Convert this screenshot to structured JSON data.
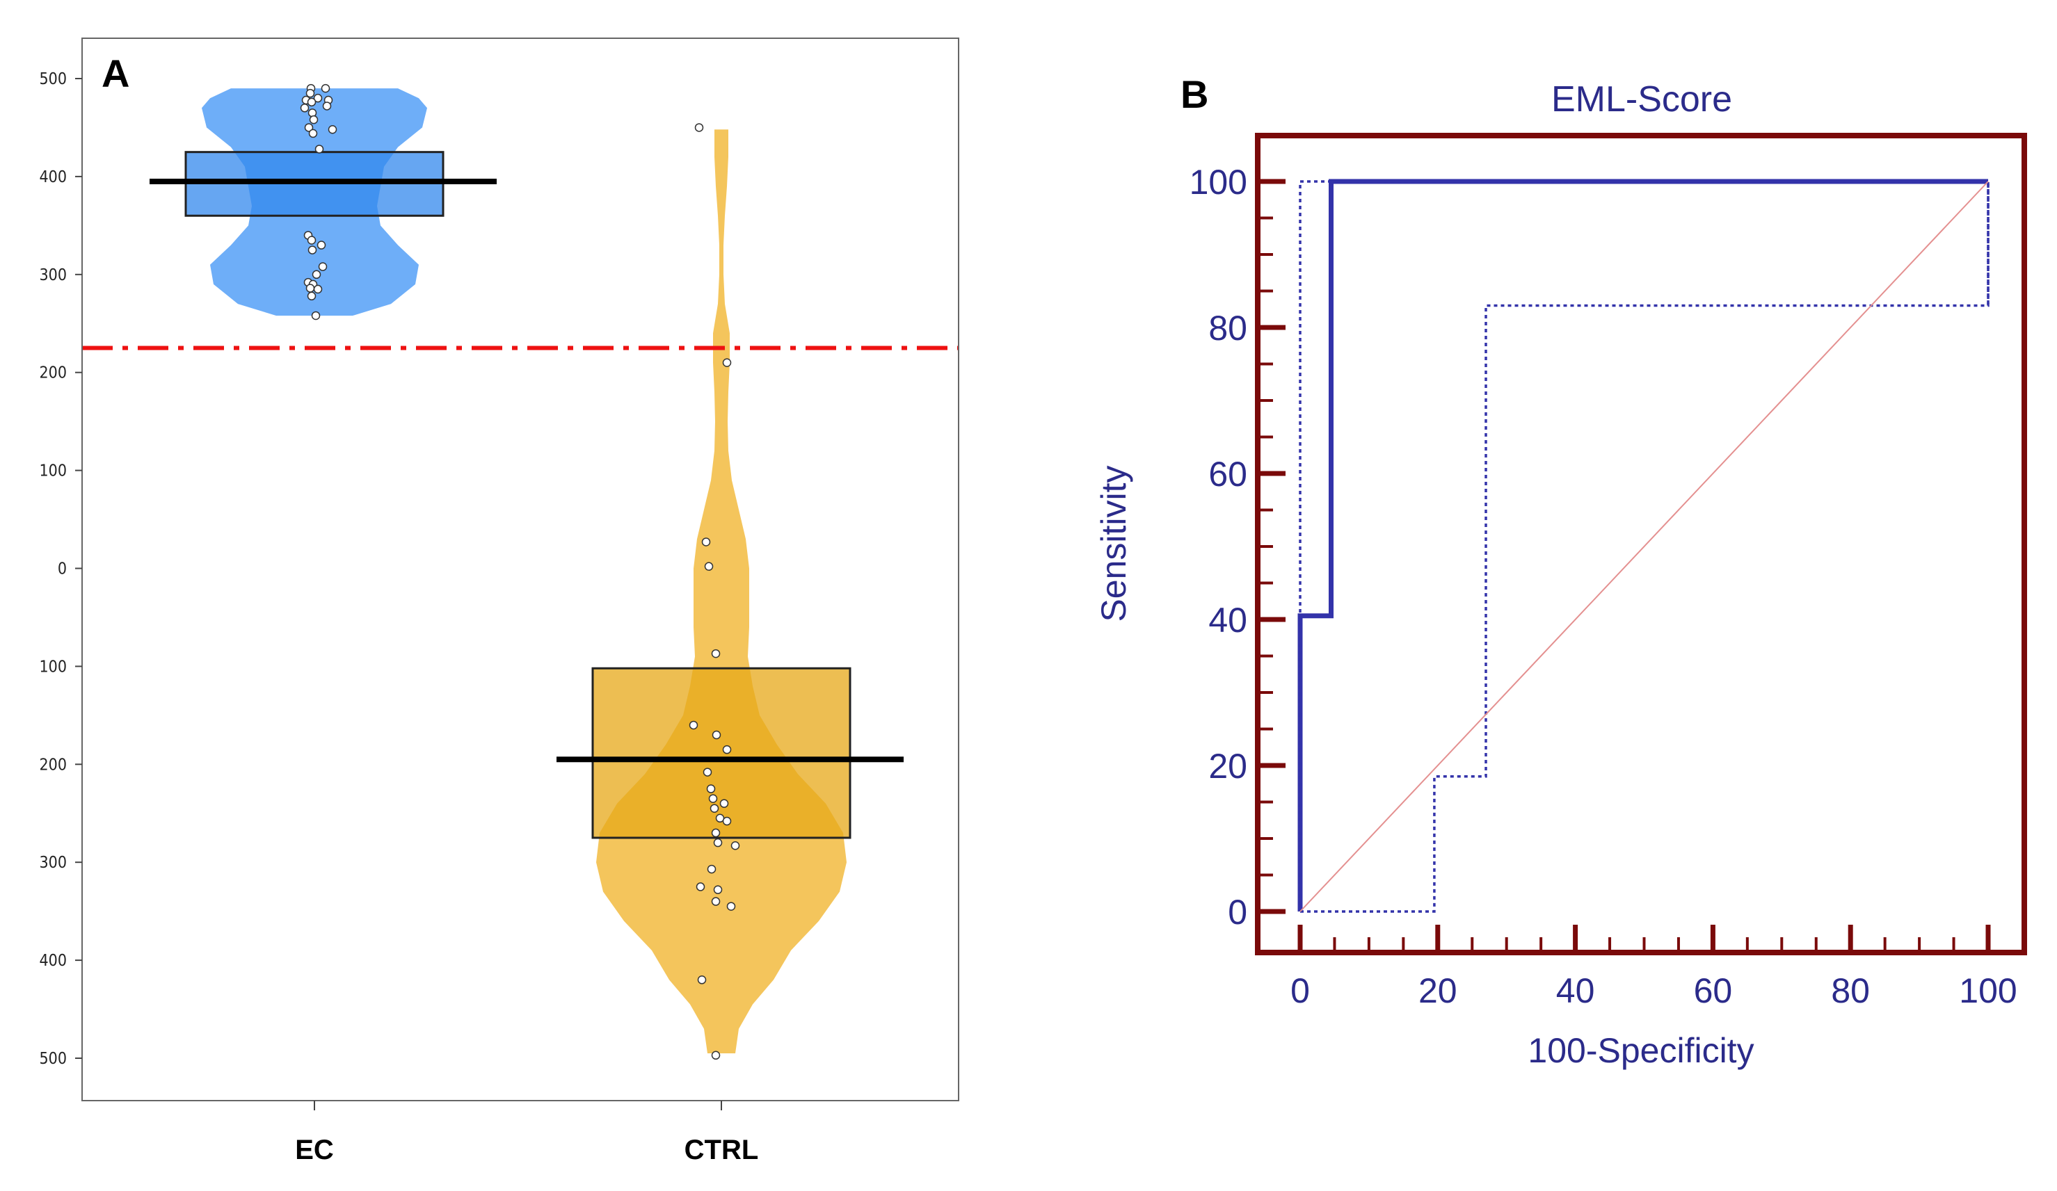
{
  "chart_data": [
    {
      "panel_label": "A",
      "type": "violin-box",
      "ylim": [
        -500,
        500
      ],
      "yticks": [
        500,
        400,
        300,
        200,
        100,
        0,
        -100,
        -200,
        -300,
        -400,
        -500
      ],
      "ytick_labels": [
        "500",
        "400",
        "300",
        "200",
        "100",
        "0",
        "100",
        "200",
        "300",
        "400",
        "500"
      ],
      "categories": [
        "EC",
        "CTRL"
      ],
      "threshold": 225,
      "colors": {
        "EC_fill": "#5aa3f7",
        "EC_box": "#3388ee",
        "CTRL_fill": "#f2bd45",
        "CTRL_box": "#e7a818",
        "threshold_line": "#ee1111"
      },
      "series": [
        {
          "name": "EC",
          "median": 395,
          "q1": 360,
          "q3": 425,
          "violin": [
            [
              258,
              55
            ],
            [
              270,
              110
            ],
            [
              290,
              145
            ],
            [
              310,
              150
            ],
            [
              330,
              120
            ],
            [
              350,
              95
            ],
            [
              370,
              90
            ],
            [
              390,
              95
            ],
            [
              410,
              100
            ],
            [
              430,
              120
            ],
            [
              450,
              155
            ],
            [
              470,
              162
            ],
            [
              480,
              150
            ],
            [
              490,
              120
            ]
          ],
          "points": [
            [
              -5,
              490
            ],
            [
              -6,
              485
            ],
            [
              16,
              490
            ],
            [
              5,
              480
            ],
            [
              -12,
              478
            ],
            [
              -4,
              476
            ],
            [
              20,
              478
            ],
            [
              18,
              472
            ],
            [
              -14,
              470
            ],
            [
              -3,
              465
            ],
            [
              -1,
              458
            ],
            [
              26,
              448
            ],
            [
              -8,
              450
            ],
            [
              -2,
              444
            ],
            [
              7,
              428
            ],
            [
              -9,
              340
            ],
            [
              -4,
              335
            ],
            [
              10,
              330
            ],
            [
              -3,
              325
            ],
            [
              12,
              308
            ],
            [
              3,
              300
            ],
            [
              -9,
              292
            ],
            [
              -2,
              290
            ],
            [
              -6,
              286
            ],
            [
              5,
              285
            ],
            [
              -4,
              278
            ],
            [
              2,
              258
            ]
          ]
        },
        {
          "name": "CTRL",
          "median": -195,
          "q1": -275,
          "q3": -102,
          "violin": [
            [
              -495,
              20
            ],
            [
              -470,
              25
            ],
            [
              -445,
              45
            ],
            [
              -420,
              75
            ],
            [
              -390,
              100
            ],
            [
              -360,
              140
            ],
            [
              -330,
              170
            ],
            [
              -300,
              180
            ],
            [
              -270,
              175
            ],
            [
              -240,
              150
            ],
            [
              -210,
              110
            ],
            [
              -180,
              80
            ],
            [
              -150,
              55
            ],
            [
              -120,
              45
            ],
            [
              -90,
              38
            ],
            [
              -60,
              40
            ],
            [
              -30,
              40
            ],
            [
              0,
              40
            ],
            [
              30,
              35
            ],
            [
              60,
              25
            ],
            [
              90,
              15
            ],
            [
              120,
              10
            ],
            [
              150,
              9
            ],
            [
              180,
              10
            ],
            [
              210,
              12
            ],
            [
              240,
              12
            ],
            [
              270,
              5
            ],
            [
              300,
              3
            ],
            [
              330,
              3
            ],
            [
              360,
              5
            ],
            [
              390,
              8
            ],
            [
              420,
              10
            ],
            [
              448,
              10
            ]
          ],
          "points": [
            [
              -32,
              450
            ],
            [
              8,
              210
            ],
            [
              -22,
              27
            ],
            [
              -18,
              2
            ],
            [
              -8,
              -87
            ],
            [
              -40,
              -160
            ],
            [
              -7,
              -170
            ],
            [
              8,
              -185
            ],
            [
              -20,
              -208
            ],
            [
              -15,
              -225
            ],
            [
              -12,
              -235
            ],
            [
              4,
              -240
            ],
            [
              -10,
              -245
            ],
            [
              -2,
              -255
            ],
            [
              8,
              -258
            ],
            [
              -8,
              -270
            ],
            [
              -5,
              -280
            ],
            [
              20,
              -283
            ],
            [
              -14,
              -307
            ],
            [
              -5,
              -328
            ],
            [
              -30,
              -325
            ],
            [
              -8,
              -340
            ],
            [
              14,
              -345
            ],
            [
              -28,
              -420
            ],
            [
              -8,
              -497
            ]
          ]
        }
      ]
    },
    {
      "panel_label": "B",
      "type": "line",
      "title": "EML-Score",
      "xlabel": "100-Specificity",
      "ylabel": "Sensitivity",
      "xlim": [
        -6,
        106
      ],
      "ylim": [
        -6,
        106
      ],
      "xticks": [
        0,
        20,
        40,
        60,
        80,
        100
      ],
      "yticks": [
        0,
        20,
        40,
        60,
        80,
        100
      ],
      "xtick_labels": [
        "0",
        "20",
        "40",
        "60",
        "80",
        "100"
      ],
      "ytick_labels": [
        "0",
        "20",
        "40",
        "60",
        "80",
        "100"
      ],
      "colors": {
        "frame": "#7a0a0a",
        "roc": "#3333aa",
        "reference": "#e49090",
        "text": "#2b2b8a"
      },
      "series": [
        {
          "name": "ROC curve",
          "style": "solid",
          "x": [
            0,
            0,
            4.5,
            4.5,
            100
          ],
          "y": [
            0,
            40.5,
            40.5,
            100,
            100
          ]
        },
        {
          "name": "Upper 95% CI",
          "style": "dotted",
          "x": [
            0,
            0,
            100,
            100
          ],
          "y": [
            0,
            100,
            100,
            83
          ]
        },
        {
          "name": "Lower 95% CI",
          "style": "dotted",
          "x": [
            0,
            19.5,
            19.5,
            27,
            27,
            100,
            100
          ],
          "y": [
            0,
            0,
            18.5,
            18.5,
            83,
            83,
            100
          ]
        },
        {
          "name": "Reference line",
          "style": "thin",
          "x": [
            0,
            100
          ],
          "y": [
            0,
            100
          ]
        }
      ]
    }
  ]
}
